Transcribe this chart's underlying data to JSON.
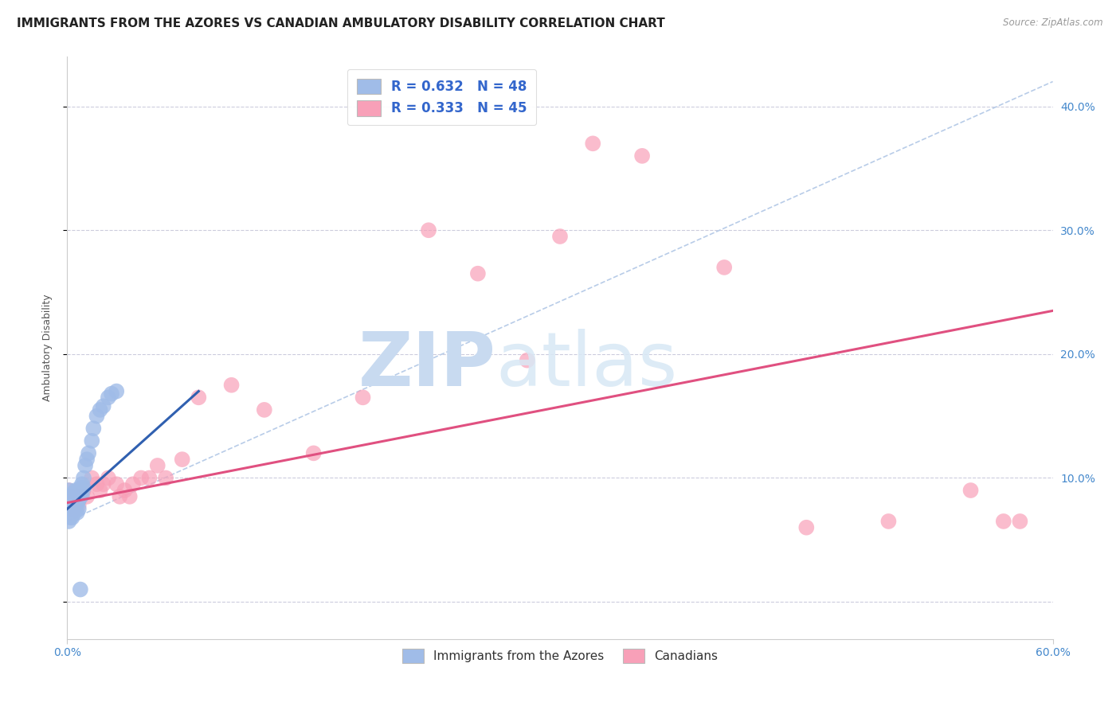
{
  "title": "IMMIGRANTS FROM THE AZORES VS CANADIAN AMBULATORY DISABILITY CORRELATION CHART",
  "source": "Source: ZipAtlas.com",
  "ylabel": "Ambulatory Disability",
  "y_tick_labels": [
    "",
    "10.0%",
    "20.0%",
    "30.0%",
    "40.0%"
  ],
  "y_tick_positions": [
    0.0,
    0.1,
    0.2,
    0.3,
    0.4
  ],
  "xlim": [
    0.0,
    0.6
  ],
  "ylim": [
    -0.03,
    0.44
  ],
  "legend_label1": "Immigrants from the Azores",
  "legend_label2": "Canadians",
  "blue_color": "#a0bce8",
  "blue_line_color": "#3060b0",
  "pink_color": "#f8a0b8",
  "pink_line_color": "#e05080",
  "dashed_color": "#b8cce8",
  "background_color": "#ffffff",
  "grid_color": "#ccccdd",
  "title_fontsize": 11,
  "axis_label_fontsize": 9,
  "tick_fontsize": 10,
  "right_tick_color": "#4488cc",
  "blue_scatter": {
    "x": [
      0.001,
      0.001,
      0.001,
      0.001,
      0.001,
      0.001,
      0.002,
      0.002,
      0.002,
      0.002,
      0.002,
      0.003,
      0.003,
      0.003,
      0.003,
      0.003,
      0.004,
      0.004,
      0.004,
      0.004,
      0.005,
      0.005,
      0.005,
      0.005,
      0.006,
      0.006,
      0.006,
      0.007,
      0.007,
      0.007,
      0.008,
      0.008,
      0.009,
      0.009,
      0.01,
      0.01,
      0.011,
      0.012,
      0.013,
      0.015,
      0.016,
      0.018,
      0.02,
      0.022,
      0.025,
      0.027,
      0.03,
      0.008
    ],
    "y": [
      0.075,
      0.08,
      0.085,
      0.09,
      0.07,
      0.065,
      0.075,
      0.082,
      0.078,
      0.068,
      0.072,
      0.08,
      0.075,
      0.085,
      0.07,
      0.068,
      0.083,
      0.078,
      0.088,
      0.073,
      0.082,
      0.09,
      0.076,
      0.073,
      0.085,
      0.079,
      0.072,
      0.088,
      0.082,
      0.075,
      0.092,
      0.085,
      0.095,
      0.086,
      0.1,
      0.092,
      0.11,
      0.115,
      0.12,
      0.13,
      0.14,
      0.15,
      0.155,
      0.158,
      0.165,
      0.168,
      0.17,
      0.01
    ]
  },
  "pink_scatter": {
    "x": [
      0.001,
      0.001,
      0.002,
      0.002,
      0.003,
      0.003,
      0.004,
      0.005,
      0.006,
      0.007,
      0.008,
      0.01,
      0.012,
      0.015,
      0.018,
      0.02,
      0.022,
      0.025,
      0.03,
      0.032,
      0.035,
      0.038,
      0.04,
      0.045,
      0.05,
      0.055,
      0.06,
      0.07,
      0.08,
      0.1,
      0.12,
      0.15,
      0.18,
      0.22,
      0.25,
      0.28,
      0.3,
      0.32,
      0.35,
      0.4,
      0.45,
      0.5,
      0.55,
      0.57,
      0.58
    ],
    "y": [
      0.08,
      0.09,
      0.078,
      0.085,
      0.082,
      0.07,
      0.075,
      0.08,
      0.083,
      0.078,
      0.085,
      0.09,
      0.085,
      0.1,
      0.095,
      0.09,
      0.095,
      0.1,
      0.095,
      0.085,
      0.09,
      0.085,
      0.095,
      0.1,
      0.1,
      0.11,
      0.1,
      0.115,
      0.165,
      0.175,
      0.155,
      0.12,
      0.165,
      0.3,
      0.265,
      0.195,
      0.295,
      0.37,
      0.36,
      0.27,
      0.06,
      0.065,
      0.09,
      0.065,
      0.065
    ]
  },
  "blue_line": {
    "x": [
      0.0,
      0.08
    ],
    "y": [
      0.075,
      0.17
    ]
  },
  "pink_line": {
    "x": [
      0.0,
      0.6
    ],
    "y": [
      0.08,
      0.235
    ]
  },
  "dashed_line": {
    "x": [
      0.0,
      0.6
    ],
    "y": [
      0.065,
      0.42
    ]
  }
}
